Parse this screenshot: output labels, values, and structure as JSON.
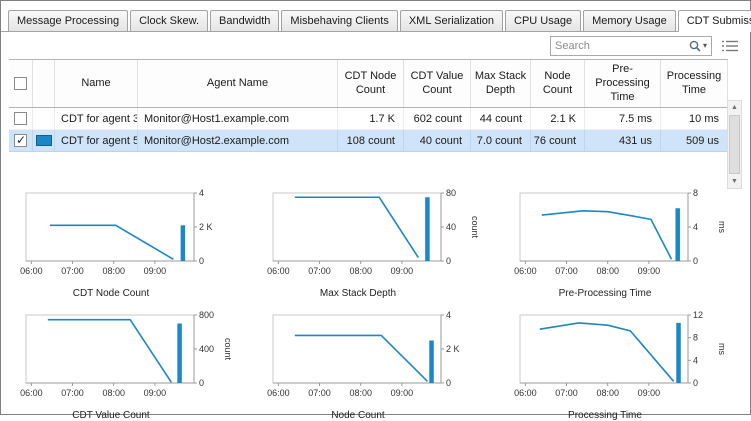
{
  "colors": {
    "series": "#1b87c6",
    "selection_bg": "#cfe4f8",
    "window_border": "#808080"
  },
  "tabs": [
    {
      "label": "Message Processing",
      "active": false
    },
    {
      "label": "Clock Skew.",
      "active": false
    },
    {
      "label": "Bandwidth",
      "active": false
    },
    {
      "label": "Misbehaving Clients",
      "active": false
    },
    {
      "label": "XML Serialization",
      "active": false
    },
    {
      "label": "CPU Usage",
      "active": false
    },
    {
      "label": "Memory Usage",
      "active": false
    },
    {
      "label": "CDT Submission",
      "active": true
    }
  ],
  "toolbar": {
    "search_placeholder": "Search",
    "search_dropdown_glyph": "▾"
  },
  "scrollbar": {
    "up_glyph": "▲",
    "down_glyph": "▼"
  },
  "table": {
    "header": {
      "name": "Name",
      "agent_name": "Agent Name",
      "metrics": [
        "CDT Node\nCount",
        "CDT Value\nCount",
        "Max Stack\nDepth",
        "Node\nCount",
        "Pre-Processing\nTime",
        "Processing\nTime"
      ]
    },
    "rows": [
      {
        "checked": false,
        "selected": false,
        "swatch_color": null,
        "name": "CDT for agent 3",
        "agent_name": "Monitor@Host1.example.com",
        "metrics": [
          "1.7 K",
          "602 count",
          "44 count",
          "2.1 K",
          "7.5 ms",
          "10 ms"
        ]
      },
      {
        "checked": true,
        "selected": true,
        "swatch_color": "#1b87c6",
        "name": "CDT for agent 5",
        "agent_name": "Monitor@Host2.example.com",
        "metrics": [
          "108 count",
          "40 count",
          "7.0 count",
          "76 count",
          "431 us",
          "509 us"
        ]
      }
    ]
  },
  "chart_data": [
    {
      "type": "line",
      "title": "CDT Node Count",
      "unit": "",
      "ylim": [
        0,
        4
      ],
      "yticks": [
        [
          4,
          "4"
        ],
        [
          2,
          "2 K"
        ],
        [
          0,
          "0"
        ]
      ],
      "xlim": [
        5.87,
        9.95
      ],
      "xticks": [
        [
          6,
          "06:00"
        ],
        [
          7,
          "07:00"
        ],
        [
          8,
          "08:00"
        ],
        [
          9,
          "09:00"
        ]
      ],
      "line_x": [
        6.45,
        8.05,
        9.45
      ],
      "line_y": [
        2.1,
        2.1,
        0.1
      ],
      "bar_x": 9.68,
      "bar_y": 2.1
    },
    {
      "type": "line",
      "title": "Max Stack Depth",
      "unit": "count",
      "ylim": [
        0,
        80
      ],
      "yticks": [
        [
          80,
          "80"
        ],
        [
          40,
          "40"
        ],
        [
          0,
          "0"
        ]
      ],
      "xlim": [
        5.87,
        9.95
      ],
      "xticks": [
        [
          6,
          "06:00"
        ],
        [
          7,
          "07:00"
        ],
        [
          8,
          "08:00"
        ],
        [
          9,
          "09:00"
        ]
      ],
      "line_x": [
        6.4,
        8.45,
        9.4
      ],
      "line_y": [
        75,
        75,
        4
      ],
      "bar_x": 9.62,
      "bar_y": 75
    },
    {
      "type": "line",
      "title": "Pre-Processing Time",
      "unit": "ms",
      "ylim": [
        0,
        8
      ],
      "yticks": [
        [
          8,
          "8"
        ],
        [
          4,
          "4"
        ],
        [
          0,
          "0"
        ]
      ],
      "xlim": [
        5.87,
        9.95
      ],
      "xticks": [
        [
          6,
          "06:00"
        ],
        [
          7,
          "07:00"
        ],
        [
          8,
          "08:00"
        ],
        [
          9,
          "09:00"
        ]
      ],
      "line_x": [
        6.4,
        7.4,
        8.0,
        8.6,
        9.05,
        9.55
      ],
      "line_y": [
        5.4,
        5.9,
        5.8,
        5.3,
        4.9,
        0.2
      ],
      "bar_x": 9.7,
      "bar_y": 6.2
    },
    {
      "type": "line",
      "title": "CDT Value Count",
      "unit": "count",
      "ylim": [
        0,
        800
      ],
      "yticks": [
        [
          800,
          "800"
        ],
        [
          400,
          "400"
        ],
        [
          0,
          "0"
        ]
      ],
      "xlim": [
        5.87,
        9.95
      ],
      "xticks": [
        [
          6,
          "06:00"
        ],
        [
          7,
          "07:00"
        ],
        [
          8,
          "08:00"
        ],
        [
          9,
          "09:00"
        ]
      ],
      "line_x": [
        6.4,
        8.4,
        9.4
      ],
      "line_y": [
        745,
        745,
        8
      ],
      "bar_x": 9.6,
      "bar_y": 700
    },
    {
      "type": "line",
      "title": "Node Count",
      "unit": "",
      "ylim": [
        0,
        4
      ],
      "yticks": [
        [
          4,
          "4"
        ],
        [
          2,
          "2 K"
        ],
        [
          0,
          "0"
        ]
      ],
      "xlim": [
        5.87,
        9.95
      ],
      "xticks": [
        [
          6,
          "06:00"
        ],
        [
          7,
          "07:00"
        ],
        [
          8,
          "08:00"
        ],
        [
          9,
          "09:00"
        ]
      ],
      "line_x": [
        6.4,
        8.5,
        9.62
      ],
      "line_y": [
        2.8,
        2.8,
        0.1
      ],
      "bar_x": 9.72,
      "bar_y": 2.5
    },
    {
      "type": "line",
      "title": "Processing Time",
      "unit": "ms",
      "ylim": [
        0,
        12
      ],
      "yticks": [
        [
          12,
          "12"
        ],
        [
          8,
          "8"
        ],
        [
          4,
          "4"
        ],
        [
          0,
          "0"
        ]
      ],
      "xlim": [
        5.87,
        9.95
      ],
      "xticks": [
        [
          6,
          "06:00"
        ],
        [
          7,
          "07:00"
        ],
        [
          8,
          "08:00"
        ],
        [
          9,
          "09:00"
        ]
      ],
      "line_x": [
        6.35,
        7.3,
        8.0,
        8.55,
        9.6
      ],
      "line_y": [
        9.5,
        10.6,
        10.2,
        9.2,
        0.3
      ],
      "bar_x": 9.72,
      "bar_y": 10.6
    }
  ]
}
